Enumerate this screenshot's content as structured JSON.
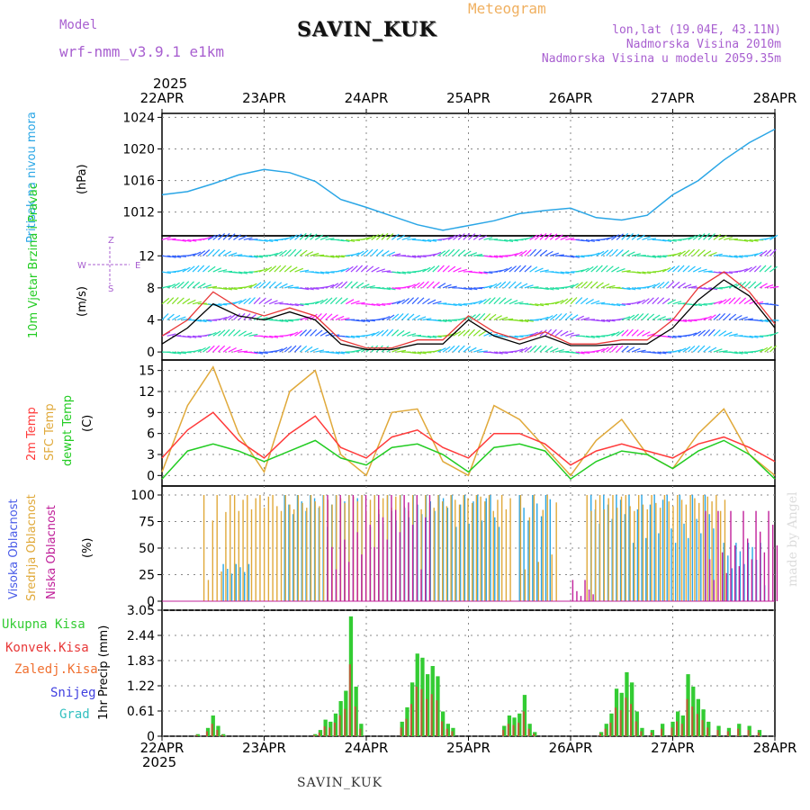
{
  "header": {
    "station_title": "SAVIN_KUK",
    "meteogram_label": "Meteogram",
    "model_label": "Model",
    "model_name": "wrf-nmm_v3.9.1 e1km",
    "coords": "lon,lat (19.04E, 43.11N)",
    "altitude": "Nadmorska Visina 2010m",
    "model_altitude": "Nadmorska Visina u modelu 2059.35m",
    "year_top": "2025",
    "year_bottom": "2025",
    "footer_station": "SAVIN_KUK",
    "credit": "made by Angel"
  },
  "colors": {
    "pressure": "#2aa6e6",
    "temp2m": "#ff3a3a",
    "sfc": "#e0a93a",
    "dew": "#22cc22",
    "high_cloud": "#2aa6e6",
    "mid_cloud": "#e0a93a",
    "low_cloud": "#c0209a",
    "total_precip": "#33cc33",
    "conv_precip": "#e83838",
    "frz_precip": "#f07030",
    "snow": "#4040e0",
    "graupel": "#33c0c0",
    "gust": "#e83838",
    "wind_mean": "#000000",
    "grid": "#888888"
  },
  "time_axis": {
    "labels": [
      "22APR",
      "23APR",
      "24APR",
      "25APR",
      "26APR",
      "27APR",
      "28APR"
    ]
  },
  "compass": {
    "top": "Z",
    "left": "W",
    "right": "E",
    "bottom": "S"
  },
  "chart_data": [
    {
      "type": "line",
      "panel": "pressure",
      "ylabel": "Pritisak na nivou mora",
      "unit": "(hPa)",
      "ylim": [
        1009,
        1024.5
      ],
      "yticks": [
        1012,
        1016,
        1020,
        1024
      ],
      "x_days": [
        0,
        0.25,
        0.5,
        0.75,
        1.0,
        1.25,
        1.5,
        1.75,
        2.0,
        2.25,
        2.5,
        2.75,
        3.0,
        3.25,
        3.5,
        3.75,
        4.0,
        4.25,
        4.5,
        4.75,
        5.0,
        5.25,
        5.5,
        5.75,
        6.0
      ],
      "series": [
        {
          "values": [
            1014.2,
            1014.6,
            1015.6,
            1016.7,
            1017.4,
            1017.0,
            1015.9,
            1013.6,
            1012.6,
            1011.5,
            1010.4,
            1009.7,
            1010.3,
            1010.9,
            1011.8,
            1012.2,
            1012.5,
            1011.3,
            1011.0,
            1011.6,
            1014.2,
            1016.0,
            1018.6,
            1020.8,
            1022.5
          ]
        }
      ]
    },
    {
      "type": "line",
      "panel": "wind",
      "ylabel": "10m Vjetar Brzina i Pravac",
      "unit": "(m/s)",
      "ylim": [
        -1,
        14.5
      ],
      "yticks": [
        0,
        4,
        8,
        12
      ],
      "x_days": [
        0,
        0.25,
        0.5,
        0.75,
        1.0,
        1.25,
        1.5,
        1.75,
        2.0,
        2.25,
        2.5,
        2.75,
        3.0,
        3.25,
        3.5,
        3.75,
        4.0,
        4.25,
        4.5,
        4.75,
        5.0,
        5.25,
        5.5,
        5.75,
        6.0
      ],
      "series": [
        {
          "name": "gust",
          "values": [
            2.0,
            4.0,
            7.5,
            5.5,
            4.5,
            5.5,
            4.5,
            1.5,
            0.5,
            0.5,
            1.5,
            1.5,
            4.5,
            2.5,
            1.5,
            2.5,
            1.0,
            1.0,
            1.5,
            1.5,
            4.0,
            8.0,
            10.0,
            7.5,
            3.5
          ]
        },
        {
          "name": "mean",
          "values": [
            1.0,
            3.0,
            6.0,
            4.5,
            4.0,
            5.0,
            4.0,
            1.0,
            0.3,
            0.3,
            1.0,
            1.0,
            4.0,
            2.0,
            1.0,
            2.0,
            0.8,
            0.8,
            1.0,
            1.0,
            3.0,
            6.5,
            9.0,
            7.0,
            3.0
          ]
        }
      ]
    },
    {
      "type": "line",
      "panel": "temperature",
      "ylabel": "2m Temp / SFC Temp / dewpt Temp",
      "unit": "(C)",
      "ylim": [
        -1.5,
        16.5
      ],
      "yticks": [
        0,
        3,
        6,
        9,
        12,
        15
      ],
      "x_days": [
        0,
        0.25,
        0.5,
        0.75,
        1.0,
        1.25,
        1.5,
        1.75,
        2.0,
        2.25,
        2.5,
        2.75,
        3.0,
        3.25,
        3.5,
        3.75,
        4.0,
        4.25,
        4.5,
        4.75,
        5.0,
        5.25,
        5.5,
        5.75,
        6.0
      ],
      "series": [
        {
          "name": "2m Temp",
          "values": [
            2.5,
            6.5,
            9.0,
            5.0,
            2.5,
            6.0,
            8.5,
            4.0,
            2.5,
            5.5,
            6.5,
            4.0,
            2.5,
            6.0,
            6.0,
            4.5,
            1.5,
            3.5,
            4.5,
            3.5,
            2.5,
            4.5,
            5.5,
            4.0,
            2.0
          ]
        },
        {
          "name": "SFC Temp",
          "values": [
            0.5,
            10.0,
            15.5,
            6.0,
            0.5,
            12.0,
            15.0,
            3.0,
            0.0,
            9.0,
            9.5,
            2.0,
            0.0,
            10.0,
            8.0,
            4.0,
            0.0,
            5.0,
            8.0,
            3.0,
            1.0,
            6.0,
            9.5,
            3.0,
            0.0
          ]
        },
        {
          "name": "dewpt Temp",
          "values": [
            -0.5,
            3.5,
            4.5,
            3.5,
            2.0,
            3.5,
            5.0,
            2.5,
            1.5,
            4.0,
            4.5,
            3.0,
            0.5,
            4.0,
            4.5,
            3.5,
            -0.5,
            2.0,
            3.5,
            3.0,
            1.0,
            3.5,
            5.0,
            3.0,
            -0.5
          ]
        }
      ]
    },
    {
      "type": "bar",
      "panel": "cloud",
      "ylabel": "Visoka Oblacnost / Srednja Oblacnost / Niska Oblacnost",
      "unit": "(%)",
      "ylim": [
        0,
        100
      ],
      "yticks": [
        0,
        25,
        50,
        75,
        100
      ],
      "series": [
        {
          "name": "Visoka Oblacnost",
          "segments": [
            [
              0.6,
              0.85,
              20,
              35
            ],
            [
              1.2,
              3.3,
              70,
              100
            ],
            [
              3.5,
              3.8,
              60,
              100
            ],
            [
              4.2,
              5.4,
              55,
              100
            ],
            [
              5.5,
              5.9,
              15,
              55
            ]
          ]
        },
        {
          "name": "Srednja Oblacnost",
          "segments": [
            [
              0.4,
              0.7,
              20,
              100
            ],
            [
              0.7,
              3.4,
              85,
              100
            ],
            [
              3.5,
              3.85,
              30,
              100
            ],
            [
              4.15,
              5.5,
              85,
              100
            ]
          ]
        },
        {
          "name": "Niska Oblacnost",
          "segments": [
            [
              1.6,
              2.6,
              30,
              100
            ],
            [
              4.0,
              4.2,
              5,
              20
            ],
            [
              5.3,
              6.0,
              20,
              85
            ]
          ]
        }
      ]
    },
    {
      "type": "bar",
      "panel": "precipitation",
      "ylabel": "1hr Precip (mm)",
      "ylim": [
        0,
        3.05
      ],
      "yticks": [
        0,
        0.61,
        1.22,
        1.83,
        2.44,
        3.05
      ],
      "legend": [
        "Ukupna Kisa",
        "Konvek.Kisa",
        "Zaledj.Kisa",
        "Snijeg",
        "Grad"
      ],
      "bars_days": [
        [
          0.35,
          0.05
        ],
        [
          0.45,
          0.2
        ],
        [
          0.5,
          0.5
        ],
        [
          0.55,
          0.25
        ],
        [
          0.6,
          0.05
        ],
        [
          1.5,
          0.05
        ],
        [
          1.55,
          0.15
        ],
        [
          1.6,
          0.4
        ],
        [
          1.65,
          0.35
        ],
        [
          1.7,
          0.55
        ],
        [
          1.75,
          0.85
        ],
        [
          1.8,
          1.1
        ],
        [
          1.85,
          2.9
        ],
        [
          1.9,
          1.2
        ],
        [
          1.95,
          0.3
        ],
        [
          2.35,
          0.35
        ],
        [
          2.4,
          0.7
        ],
        [
          2.45,
          1.3
        ],
        [
          2.5,
          2.0
        ],
        [
          2.55,
          1.9
        ],
        [
          2.6,
          1.5
        ],
        [
          2.65,
          1.7
        ],
        [
          2.7,
          1.45
        ],
        [
          2.75,
          0.6
        ],
        [
          2.8,
          0.3
        ],
        [
          2.85,
          0.2
        ],
        [
          3.35,
          0.25
        ],
        [
          3.4,
          0.5
        ],
        [
          3.45,
          0.45
        ],
        [
          3.5,
          0.55
        ],
        [
          3.55,
          1.0
        ],
        [
          3.6,
          0.3
        ],
        [
          3.65,
          0.1
        ],
        [
          4.3,
          0.1
        ],
        [
          4.35,
          0.3
        ],
        [
          4.4,
          0.55
        ],
        [
          4.45,
          1.15
        ],
        [
          4.5,
          1.05
        ],
        [
          4.55,
          1.55
        ],
        [
          4.6,
          1.3
        ],
        [
          4.65,
          0.6
        ],
        [
          4.7,
          0.2
        ],
        [
          4.8,
          0.15
        ],
        [
          4.9,
          0.3
        ],
        [
          5.0,
          0.35
        ],
        [
          5.05,
          0.6
        ],
        [
          5.1,
          0.5
        ],
        [
          5.15,
          1.5
        ],
        [
          5.2,
          1.2
        ],
        [
          5.25,
          0.9
        ],
        [
          5.3,
          0.65
        ],
        [
          5.35,
          0.35
        ],
        [
          5.45,
          0.25
        ],
        [
          5.55,
          0.2
        ],
        [
          5.65,
          0.3
        ],
        [
          5.75,
          0.25
        ],
        [
          5.85,
          0.15
        ]
      ]
    }
  ]
}
